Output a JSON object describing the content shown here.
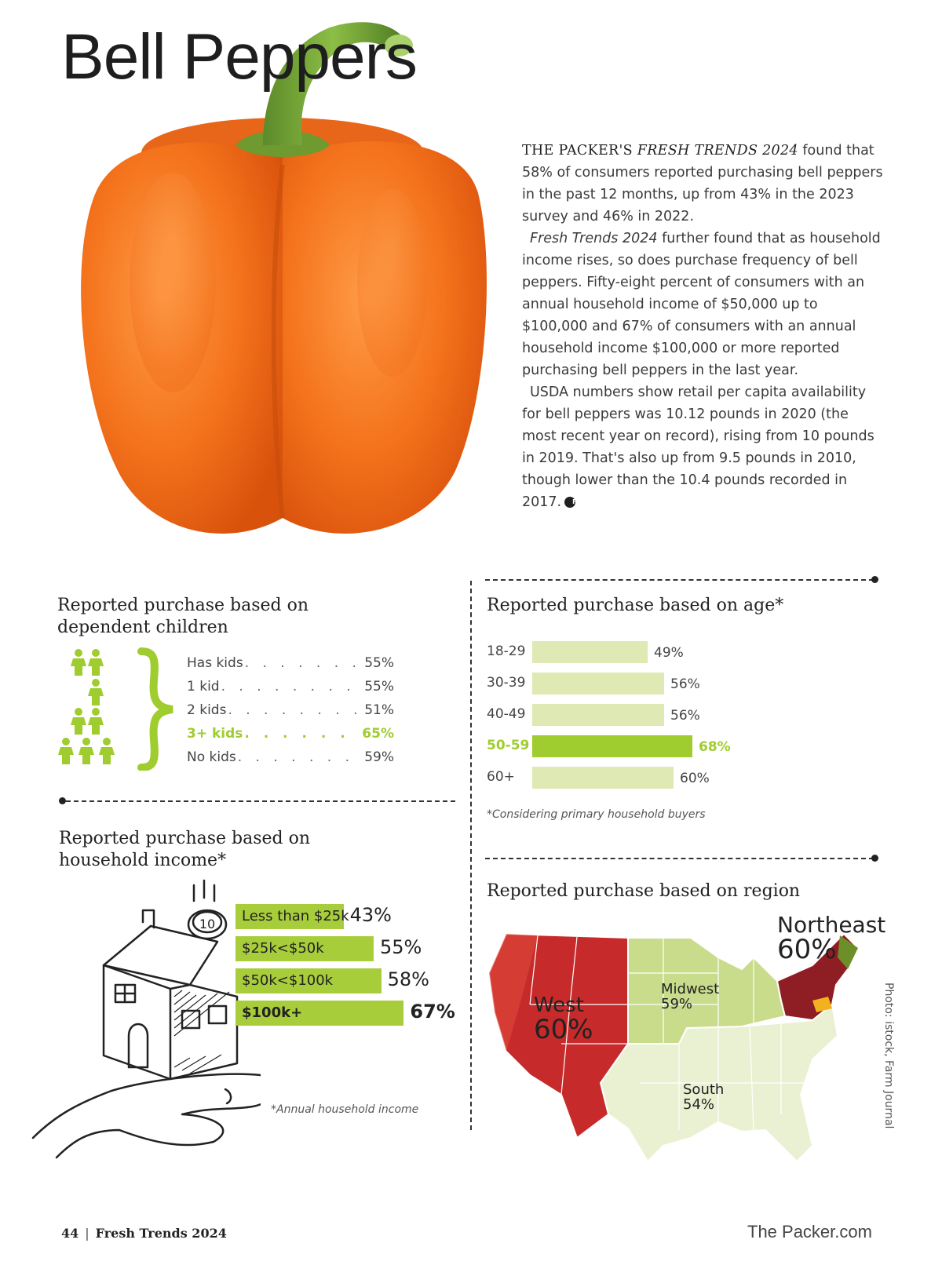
{
  "title": "Bell Peppers",
  "article": {
    "lead_source": "THE PACKER'S ",
    "lead_report": "FRESH TRENDS 2024",
    "p1_rest": " found that 58% of consumers reported purchasing bell peppers in the past 12 months, up from 43% in the 2023 survey and 46% in 2022.",
    "p2_report": "Fresh Trends 2024",
    "p2_rest": " further found that as household income rises, so does purchase frequency of bell peppers. Fifty-eight percent of consumers with an annual household income of $50,000 up to $100,000 and 67% of consumers with an annual household income $100,000 or more reported purchasing bell peppers in the last year.",
    "p3": "USDA numbers show retail per capita availability for bell peppers was 10.12 pounds in 2020 (the most recent year on record), rising from 10 pounds in 2019. That's also up from 9.5 pounds in 2010, though lower than the 10.4 pounds recorded in 2017.",
    "badge": "FT"
  },
  "kids": {
    "title_line1": "Reported purchase based on",
    "title_line2": "dependent children",
    "rows": [
      {
        "label": "Has kids",
        "value": "55%"
      },
      {
        "label": "1 kid",
        "value": "55%"
      },
      {
        "label": "2 kids",
        "value": "51%"
      },
      {
        "label": "3+ kids",
        "value": "65%"
      },
      {
        "label": "No kids",
        "value": "59%"
      }
    ],
    "highlight_index": 3
  },
  "age": {
    "title": "Reported purchase based on age*",
    "rows": [
      {
        "label": "18-29",
        "value": 49,
        "value_label": "49%"
      },
      {
        "label": "30-39",
        "value": 56,
        "value_label": "56%"
      },
      {
        "label": "40-49",
        "value": 56,
        "value_label": "56%"
      },
      {
        "label": "50-59",
        "value": 68,
        "value_label": "68%"
      },
      {
        "label": "60+",
        "value": 60,
        "value_label": "60%"
      }
    ],
    "highlight_index": 3,
    "footnote": "*Considering primary household buyers"
  },
  "income": {
    "title_line1": "Reported purchase based on",
    "title_line2": "household income*",
    "rows": [
      {
        "label": "Less than $25k",
        "value": 43,
        "value_label": "43%"
      },
      {
        "label": "$25k<$50k",
        "value": 55,
        "value_label": "55%"
      },
      {
        "label": "$50k<$100k",
        "value": 58,
        "value_label": "58%"
      },
      {
        "label": "$100k+",
        "value": 67,
        "value_label": "67%"
      }
    ],
    "highlight_index": 3,
    "coin": "10",
    "footnote": "*Annual household income"
  },
  "region": {
    "title": "Reported purchase based on region",
    "regions": [
      {
        "name": "Northeast",
        "value": "60%"
      },
      {
        "name": "West",
        "value": "60%"
      },
      {
        "name": "Midwest",
        "value": "59%"
      },
      {
        "name": "South",
        "value": "54%"
      }
    ]
  },
  "colors": {
    "accent_green": "#9fcc2e",
    "bar_light": "#dfe9b4",
    "pepper_orange": "#f2731f",
    "map_west": "#c62a2a",
    "map_midwest": "#c9dc8c",
    "map_south": "#eaf1d2"
  },
  "photo_credit": "Photo: istock, Farm Journal",
  "footer": {
    "page": "44",
    "publication": "Fresh Trends 2024",
    "site": "The Packer.com"
  }
}
